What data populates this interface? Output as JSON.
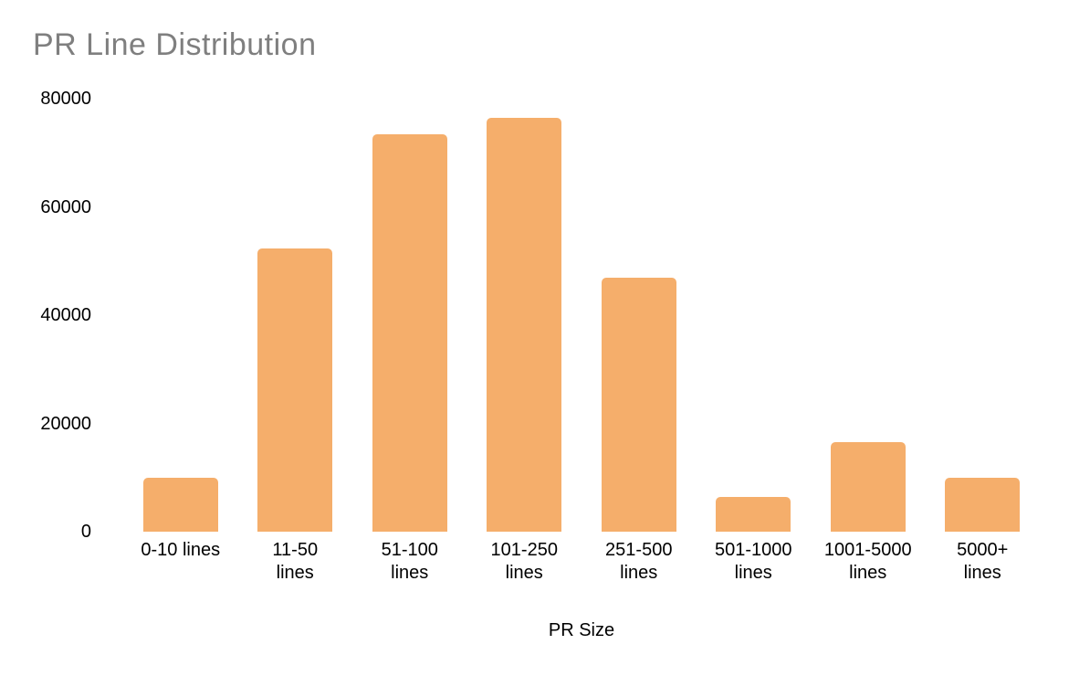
{
  "chart_data": {
    "type": "bar",
    "title": "PR Line Distribution",
    "xlabel": "PR Size",
    "ylabel": "",
    "categories": [
      "0-10 lines",
      "11-50 lines",
      "51-100 lines",
      "101-250 lines",
      "251-500 lines",
      "501-1000 lines",
      "1001-5000 lines",
      "5000+ lines"
    ],
    "category_label_lines": [
      [
        "0-10 lines"
      ],
      [
        "11-50",
        "lines"
      ],
      [
        "51-100",
        "lines"
      ],
      [
        "101-250",
        "lines"
      ],
      [
        "251-500",
        "lines"
      ],
      [
        "501-1000",
        "lines"
      ],
      [
        "1001-5000",
        "lines"
      ],
      [
        "5000+",
        "lines"
      ]
    ],
    "values": [
      9900,
      52300,
      73500,
      76500,
      47000,
      6400,
      16500,
      10000
    ],
    "ylim": [
      0,
      80000
    ],
    "yticks": [
      0,
      20000,
      40000,
      60000,
      80000
    ],
    "grid": false,
    "legend": "none",
    "colors": {
      "bar": "#f5ae6b",
      "title_text": "#7f7f7f",
      "axis_text": "#000000",
      "background": "#ffffff"
    }
  }
}
